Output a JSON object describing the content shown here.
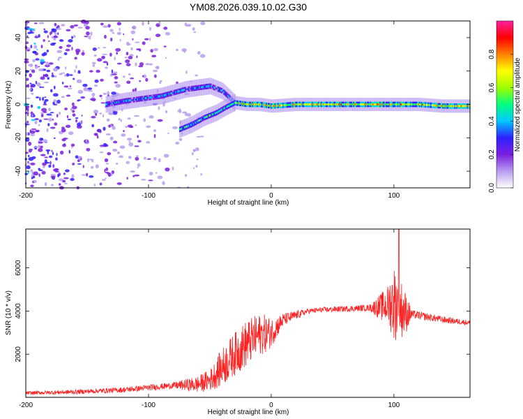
{
  "title": "YM08.2026.039.10.02.G30",
  "colorbar": {
    "label": "Normalized spectral amplitude",
    "ticks": [
      "0.0",
      "0.2",
      "0.4",
      "0.6",
      "0.8"
    ],
    "tick_values": [
      0.0,
      0.2,
      0.4,
      0.6,
      0.8
    ],
    "range": [
      0,
      1
    ],
    "colors": [
      "#ffffff",
      "#b89cf0",
      "#7a1fe0",
      "#3020ff",
      "#00c8ff",
      "#00ff80",
      "#a0ff00",
      "#ffff00",
      "#ff8000",
      "#ff0000",
      "#ff20a0"
    ]
  },
  "chart_data": [
    {
      "type": "heatmap",
      "name": "spectrogram",
      "title": "",
      "xlabel": "Height of straight line (km)",
      "ylabel": "Frequency (Hz)",
      "xlim": [
        -200,
        162
      ],
      "ylim": [
        -50,
        50
      ],
      "xticks": [
        -200,
        -100,
        0,
        100
      ],
      "xtick_labels": [
        "-200",
        "-100",
        "0",
        "100"
      ],
      "yticks": [
        -40,
        -20,
        0,
        20,
        40
      ],
      "ytick_labels": [
        "-40",
        "-20",
        "0",
        "20",
        "40"
      ],
      "ridges": [
        {
          "name": "upper-branch",
          "x": [
            -135,
            -120,
            -100,
            -90,
            -80,
            -70,
            -60,
            -50,
            -40,
            -30
          ],
          "y": [
            0,
            2,
            4,
            5,
            7,
            9,
            10,
            11,
            8,
            1
          ],
          "amplitude": 0.4
        },
        {
          "name": "lower-branch",
          "x": [
            -75,
            -65,
            -55,
            -45,
            -38,
            -30
          ],
          "y": [
            -15,
            -12,
            -8,
            -5,
            -2,
            1
          ],
          "amplitude": 0.5
        },
        {
          "name": "main-band",
          "x": [
            -30,
            -20,
            -10,
            0,
            20,
            40,
            60,
            80,
            100,
            120,
            140,
            162
          ],
          "y": [
            1,
            0,
            0,
            -1,
            0,
            0,
            0,
            0,
            0,
            0,
            -1,
            -1
          ],
          "amplitude": 0.75
        }
      ],
      "noise_region": {
        "x_from": -200,
        "x_to": -55,
        "amplitude": 0.15
      }
    },
    {
      "type": "line",
      "name": "snr",
      "title": "",
      "xlabel": "Height of straight line (km)",
      "ylabel": "SNR (10 * v/v)",
      "xlim": [
        -200,
        162
      ],
      "ylim": [
        0,
        7800
      ],
      "xticks": [
        -200,
        -100,
        0,
        100
      ],
      "xtick_labels": [
        "-200",
        "-100",
        "0",
        "100"
      ],
      "yticks": [
        2000,
        4000,
        6000
      ],
      "ytick_labels": [
        "2000",
        "4000",
        "6000"
      ],
      "color": "#ff2020",
      "envelope": {
        "x": [
          -200,
          -160,
          -120,
          -100,
          -80,
          -60,
          -50,
          -40,
          -30,
          -20,
          -10,
          0,
          10,
          20,
          30,
          40,
          60,
          80,
          90,
          95,
          100,
          103,
          106,
          110,
          120,
          140,
          162
        ],
        "y": [
          200,
          250,
          350,
          450,
          550,
          600,
          800,
          1400,
          2000,
          2500,
          2900,
          3000,
          3600,
          3800,
          4000,
          4050,
          4100,
          4150,
          4200,
          4300,
          4400,
          4200,
          4100,
          3900,
          3800,
          3600,
          3450
        ]
      },
      "noise_amplitude": {
        "x": [
          -200,
          -80,
          -50,
          -40,
          -20,
          -5,
          10,
          30,
          80,
          95,
          100,
          108,
          115,
          162
        ],
        "y": [
          80,
          150,
          500,
          900,
          1100,
          900,
          300,
          120,
          150,
          900,
          1800,
          1200,
          200,
          120
        ]
      },
      "peak": {
        "x": 104,
        "y": 7800
      }
    }
  ]
}
